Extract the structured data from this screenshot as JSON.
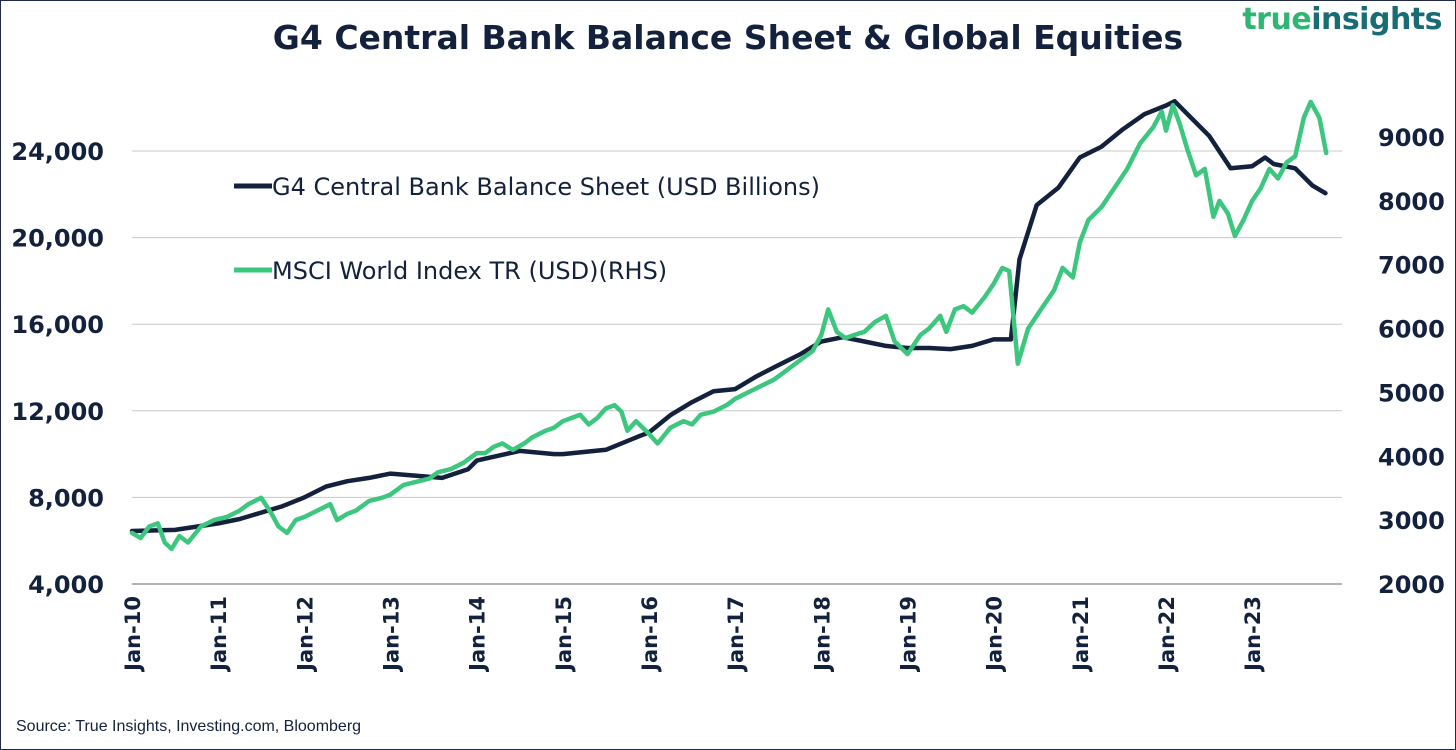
{
  "header": {
    "title": "G4 Central Bank Balance Sheet & Global Equities",
    "brand_part1": "true",
    "brand_part2": "insights"
  },
  "footer": {
    "source": "Source: True Insights, Investing.com, Bloomberg"
  },
  "colors": {
    "series1": "#14213d",
    "series2": "#3cc67e",
    "text": "#14213d",
    "grid": "#c8c8c8",
    "brand_green": "#2fb673",
    "brand_teal": "#1a6c74"
  },
  "chart_data": {
    "type": "line",
    "title": "G4 Central Bank Balance Sheet & Global Equities",
    "x_ticks": [
      "Jan-10",
      "Jan-11",
      "Jan-12",
      "Jan-13",
      "Jan-14",
      "Jan-15",
      "Jan-16",
      "Jan-17",
      "Jan-18",
      "Jan-19",
      "Jan-20",
      "Jan-21",
      "Jan-22",
      "Jan-23"
    ],
    "x_range": [
      2010.0,
      2023.95
    ],
    "y_left": {
      "ticks": [
        "4,000",
        "8,000",
        "12,000",
        "16,000",
        "20,000",
        "24,000"
      ],
      "tick_values": [
        4000,
        8000,
        12000,
        16000,
        20000,
        24000
      ],
      "range": [
        4000,
        24000
      ]
    },
    "y_right": {
      "ticks": [
        "2000",
        "3000",
        "4000",
        "5000",
        "6000",
        "7000",
        "8000",
        "9000"
      ],
      "tick_values": [
        2000,
        3000,
        4000,
        5000,
        6000,
        7000,
        8000,
        9000
      ],
      "range": [
        2000,
        9000
      ]
    },
    "grid": true,
    "legend_position": "top-left",
    "series": [
      {
        "name": "G4 Central Bank Balance Sheet (USD Billions)",
        "axis": "left",
        "points": [
          [
            2010.0,
            6450
          ],
          [
            2010.5,
            6500
          ],
          [
            2011.0,
            6800
          ],
          [
            2011.25,
            7000
          ],
          [
            2011.5,
            7300
          ],
          [
            2011.75,
            7600
          ],
          [
            2012.0,
            8000
          ],
          [
            2012.25,
            8500
          ],
          [
            2012.5,
            8750
          ],
          [
            2012.75,
            8900
          ],
          [
            2013.0,
            9100
          ],
          [
            2013.3,
            9000
          ],
          [
            2013.6,
            8900
          ],
          [
            2013.9,
            9300
          ],
          [
            2014.0,
            9700
          ],
          [
            2014.5,
            10150
          ],
          [
            2014.9,
            10000
          ],
          [
            2015.0,
            10000
          ],
          [
            2015.5,
            10200
          ],
          [
            2015.9,
            10850
          ],
          [
            2016.0,
            11000
          ],
          [
            2016.25,
            11800
          ],
          [
            2016.5,
            12400
          ],
          [
            2016.75,
            12900
          ],
          [
            2017.0,
            13000
          ],
          [
            2017.25,
            13600
          ],
          [
            2017.5,
            14100
          ],
          [
            2017.75,
            14600
          ],
          [
            2018.0,
            15200
          ],
          [
            2018.25,
            15400
          ],
          [
            2018.5,
            15200
          ],
          [
            2018.75,
            15000
          ],
          [
            2019.0,
            14900
          ],
          [
            2019.25,
            14900
          ],
          [
            2019.5,
            14850
          ],
          [
            2019.75,
            15000
          ],
          [
            2020.0,
            15300
          ],
          [
            2020.2,
            15300
          ],
          [
            2020.3,
            19000
          ],
          [
            2020.5,
            21500
          ],
          [
            2020.75,
            22300
          ],
          [
            2021.0,
            23700
          ],
          [
            2021.25,
            24200
          ],
          [
            2021.5,
            25000
          ],
          [
            2021.75,
            25700
          ],
          [
            2022.0,
            26100
          ],
          [
            2022.1,
            26300
          ],
          [
            2022.25,
            25700
          ],
          [
            2022.5,
            24700
          ],
          [
            2022.75,
            23200
          ],
          [
            2023.0,
            23300
          ],
          [
            2023.15,
            23700
          ],
          [
            2023.25,
            23400
          ],
          [
            2023.5,
            23200
          ],
          [
            2023.7,
            22400
          ],
          [
            2023.85,
            22050
          ]
        ]
      },
      {
        "name": "MSCI World Index TR (USD)(RHS)",
        "axis": "right",
        "points": [
          [
            2010.0,
            2800
          ],
          [
            2010.1,
            2720
          ],
          [
            2010.2,
            2900
          ],
          [
            2010.3,
            2950
          ],
          [
            2010.38,
            2650
          ],
          [
            2010.46,
            2550
          ],
          [
            2010.55,
            2750
          ],
          [
            2010.65,
            2650
          ],
          [
            2010.8,
            2900
          ],
          [
            2010.95,
            3000
          ],
          [
            2011.1,
            3050
          ],
          [
            2011.25,
            3150
          ],
          [
            2011.35,
            3250
          ],
          [
            2011.5,
            3350
          ],
          [
            2011.62,
            3100
          ],
          [
            2011.7,
            2900
          ],
          [
            2011.8,
            2800
          ],
          [
            2011.9,
            3000
          ],
          [
            2012.0,
            3050
          ],
          [
            2012.15,
            3150
          ],
          [
            2012.3,
            3250
          ],
          [
            2012.38,
            3000
          ],
          [
            2012.5,
            3100
          ],
          [
            2012.6,
            3150
          ],
          [
            2012.75,
            3300
          ],
          [
            2012.9,
            3350
          ],
          [
            2013.0,
            3400
          ],
          [
            2013.15,
            3550
          ],
          [
            2013.3,
            3600
          ],
          [
            2013.45,
            3650
          ],
          [
            2013.55,
            3750
          ],
          [
            2013.7,
            3800
          ],
          [
            2013.85,
            3900
          ],
          [
            2014.0,
            4050
          ],
          [
            2014.1,
            4050
          ],
          [
            2014.2,
            4150
          ],
          [
            2014.3,
            4200
          ],
          [
            2014.42,
            4100
          ],
          [
            2014.55,
            4200
          ],
          [
            2014.65,
            4300
          ],
          [
            2014.8,
            4400
          ],
          [
            2014.9,
            4450
          ],
          [
            2015.0,
            4550
          ],
          [
            2015.1,
            4600
          ],
          [
            2015.2,
            4650
          ],
          [
            2015.3,
            4500
          ],
          [
            2015.4,
            4600
          ],
          [
            2015.5,
            4750
          ],
          [
            2015.6,
            4800
          ],
          [
            2015.68,
            4700
          ],
          [
            2015.75,
            4400
          ],
          [
            2015.85,
            4550
          ],
          [
            2016.0,
            4350
          ],
          [
            2016.1,
            4200
          ],
          [
            2016.25,
            4450
          ],
          [
            2016.4,
            4550
          ],
          [
            2016.5,
            4500
          ],
          [
            2016.6,
            4650
          ],
          [
            2016.75,
            4700
          ],
          [
            2016.9,
            4800
          ],
          [
            2017.0,
            4900
          ],
          [
            2017.15,
            5000
          ],
          [
            2017.3,
            5100
          ],
          [
            2017.45,
            5200
          ],
          [
            2017.6,
            5350
          ],
          [
            2017.75,
            5500
          ],
          [
            2017.9,
            5650
          ],
          [
            2018.0,
            5900
          ],
          [
            2018.08,
            6300
          ],
          [
            2018.18,
            5950
          ],
          [
            2018.28,
            5850
          ],
          [
            2018.38,
            5900
          ],
          [
            2018.5,
            5950
          ],
          [
            2018.62,
            6100
          ],
          [
            2018.75,
            6200
          ],
          [
            2018.85,
            5800
          ],
          [
            2019.0,
            5600
          ],
          [
            2019.15,
            5900
          ],
          [
            2019.25,
            6000
          ],
          [
            2019.38,
            6200
          ],
          [
            2019.45,
            5950
          ],
          [
            2019.55,
            6300
          ],
          [
            2019.65,
            6350
          ],
          [
            2019.75,
            6250
          ],
          [
            2019.9,
            6500
          ],
          [
            2020.0,
            6700
          ],
          [
            2020.1,
            6950
          ],
          [
            2020.18,
            6900
          ],
          [
            2020.28,
            5450
          ],
          [
            2020.4,
            6000
          ],
          [
            2020.55,
            6300
          ],
          [
            2020.7,
            6600
          ],
          [
            2020.8,
            6950
          ],
          [
            2020.92,
            6800
          ],
          [
            2021.0,
            7350
          ],
          [
            2021.1,
            7700
          ],
          [
            2021.25,
            7900
          ],
          [
            2021.4,
            8200
          ],
          [
            2021.55,
            8500
          ],
          [
            2021.7,
            8900
          ],
          [
            2021.85,
            9150
          ],
          [
            2021.95,
            9400
          ],
          [
            2022.0,
            9100
          ],
          [
            2022.08,
            9500
          ],
          [
            2022.16,
            9200
          ],
          [
            2022.25,
            8800
          ],
          [
            2022.35,
            8400
          ],
          [
            2022.45,
            8500
          ],
          [
            2022.55,
            7750
          ],
          [
            2022.62,
            8000
          ],
          [
            2022.72,
            7800
          ],
          [
            2022.8,
            7450
          ],
          [
            2022.9,
            7700
          ],
          [
            2023.0,
            8000
          ],
          [
            2023.1,
            8200
          ],
          [
            2023.2,
            8500
          ],
          [
            2023.3,
            8350
          ],
          [
            2023.4,
            8600
          ],
          [
            2023.5,
            8700
          ],
          [
            2023.6,
            9300
          ],
          [
            2023.68,
            9550
          ],
          [
            2023.78,
            9300
          ],
          [
            2023.86,
            8750
          ]
        ]
      }
    ]
  }
}
